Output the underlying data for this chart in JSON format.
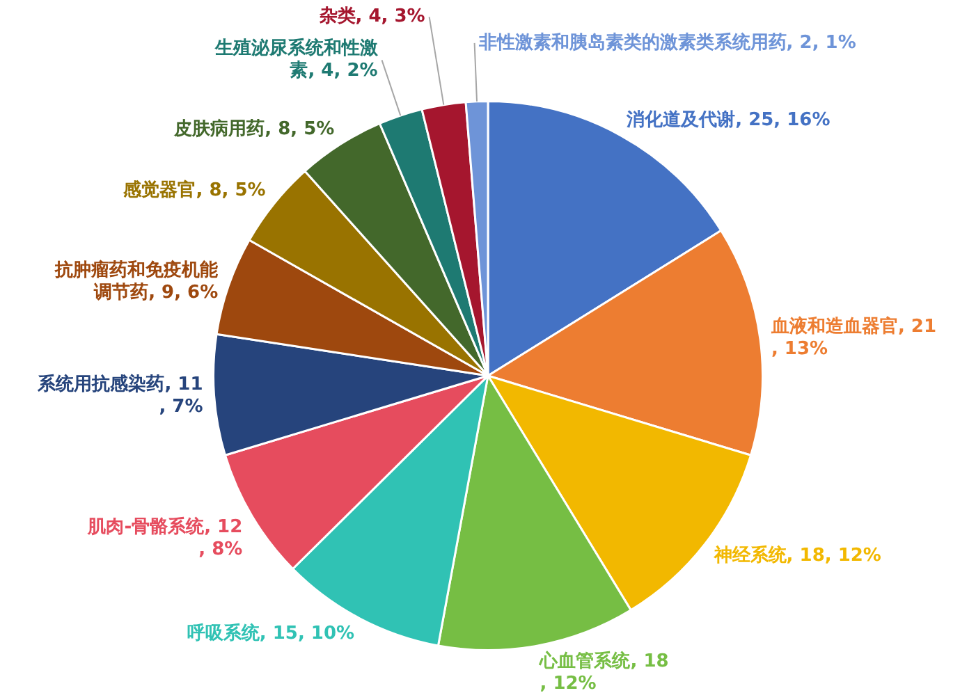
{
  "chart_data": {
    "type": "pie",
    "categories": [
      "消化道及代谢",
      "血液和造血器官",
      "神经系统",
      "心血管系统",
      "呼吸系统",
      "肌肉-骨骼系统",
      "系统用抗感染药",
      "抗肿瘤药和免疫机能调节药",
      "感觉器官",
      "皮肤病用药",
      "生殖泌尿系统和性激素",
      "杂类",
      "非性激素和胰岛素类的激素类系统用药"
    ],
    "values": [
      25,
      21,
      18,
      18,
      15,
      12,
      11,
      9,
      8,
      8,
      4,
      4,
      2
    ],
    "value_labels": [
      "25, 16%",
      "21, 13%",
      "18, 12%",
      "18, 12%",
      "15, 10%",
      "12, 8%",
      "11, 7%",
      "9, 6%",
      "8, 5%",
      "8, 5%",
      "4, 2%",
      "4, 3%",
      "2, 1%"
    ],
    "colors": [
      "#4472c4",
      "#ed7d31",
      "#f2b800",
      "#76be44",
      "#30c2b4",
      "#e64c5e",
      "#26447c",
      "#9e480e",
      "#997300",
      "#43682b",
      "#1e7a72",
      "#a5162e",
      "#6e94d8"
    ],
    "legend": false
  }
}
